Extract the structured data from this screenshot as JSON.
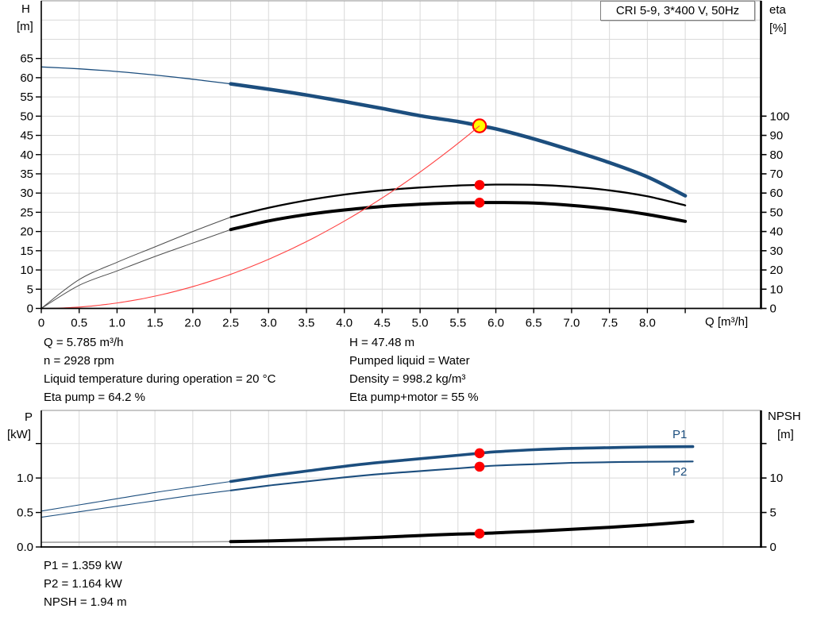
{
  "header": {
    "title": "CRI 5-9, 3*400 V, 50Hz"
  },
  "colors": {
    "curve_blue": "#1c4e7e",
    "curve_black": "#000000",
    "thin_gray": "#4d4d4d",
    "npsh_thin_gray": "#999999",
    "system_red": "#ff4040",
    "marker_red": "#ff0000",
    "marker_yellow": "#ffff00",
    "grid": "#d9d9d9",
    "frame": "#a6a6a6",
    "axis": "#000000"
  },
  "top_chart_labels": {
    "y_left_1": "H",
    "y_left_2": "[m]",
    "y_right_1": "eta",
    "y_right_2": "[%]",
    "x_label": "Q [m³/h]"
  },
  "bottom_chart_labels": {
    "y_left_1": "P",
    "y_left_2": "[kW]",
    "y_right_1": "NPSH",
    "y_right_2": "[m]",
    "p1": "P1",
    "p2": "P2"
  },
  "annotations": {
    "left": [
      "Q = 5.785 m³/h",
      "n = 2928 rpm",
      "Liquid temperature during operation = 20 °C",
      "Eta pump = 64.2 %"
    ],
    "right": [
      "H = 47.48 m",
      "Pumped liquid = Water",
      "Density = 998.2 kg/m³",
      "Eta pump+motor = 55 %"
    ],
    "bottom": [
      "P1 = 1.359 kW",
      "P2 = 1.164 kW",
      "NPSH = 1.94 m"
    ]
  },
  "chart_data": [
    {
      "type": "line",
      "title": "CRI 5-9, 3*400 V, 50Hz",
      "x_axis": {
        "label": "Q [m³/h]",
        "min": 0,
        "max": 9.5,
        "grid_step": 0.5,
        "tick_values": [
          0,
          0.5,
          1,
          1.5,
          2,
          2.5,
          3,
          3.5,
          4,
          4.5,
          5,
          5.5,
          6,
          6.5,
          7,
          7.5,
          8,
          8.5
        ],
        "tick_labels": [
          "0",
          "0.5",
          "1.0",
          "1.5",
          "2.0",
          "2.5",
          "3.0",
          "3.5",
          "4.0",
          "4.5",
          "5.0",
          "5.5",
          "6.0",
          "6.5",
          "7.0",
          "7.5",
          "8.0",
          ""
        ]
      },
      "y_left": {
        "label": "H [m]",
        "min": 0,
        "max": 80,
        "tick_values": [
          0,
          5,
          10,
          15,
          20,
          25,
          30,
          35,
          40,
          45,
          50,
          55,
          60,
          65
        ],
        "tick_labels": [
          "0",
          "5",
          "10",
          "15",
          "20",
          "25",
          "30",
          "35",
          "40",
          "45",
          "50",
          "55",
          "60",
          "65"
        ],
        "grid_values": [
          5,
          10,
          15,
          20,
          25,
          30,
          35,
          40,
          45,
          50,
          55,
          60,
          65,
          70,
          75
        ]
      },
      "y_right": {
        "label": "eta [%]",
        "min": 0,
        "max": 160,
        "tick_values": [
          0,
          10,
          20,
          30,
          40,
          50,
          60,
          70,
          80,
          90,
          100
        ],
        "tick_labels": [
          "0",
          "10",
          "20",
          "30",
          "40",
          "50",
          "60",
          "70",
          "80",
          "90",
          "100"
        ]
      },
      "series": [
        {
          "name": "pump-head-curve",
          "axis": "left",
          "color_key": "curve_blue",
          "thin_color_key": "curve_blue",
          "thin_until": 2.5,
          "thin_width": 1.3,
          "width": 4.5,
          "points": [
            [
              0,
              62.8
            ],
            [
              0.5,
              62.3
            ],
            [
              1,
              61.6
            ],
            [
              1.5,
              60.7
            ],
            [
              2,
              59.6
            ],
            [
              2.5,
              58.4
            ],
            [
              3,
              57.0
            ],
            [
              3.5,
              55.5
            ],
            [
              4,
              53.8
            ],
            [
              4.5,
              52.0
            ],
            [
              5,
              50.1
            ],
            [
              5.5,
              48.6
            ],
            [
              5.785,
              47.48
            ],
            [
              6,
              46.7
            ],
            [
              6.5,
              44.1
            ],
            [
              7,
              41.1
            ],
            [
              7.5,
              37.9
            ],
            [
              8,
              34.2
            ],
            [
              8.5,
              29.3
            ]
          ]
        },
        {
          "name": "eta-pump-curve",
          "axis": "right",
          "color_key": "curve_black",
          "thin_color_key": "thin_gray",
          "thin_until": 2.5,
          "thin_width": 1,
          "width": 2.3,
          "points": [
            [
              0,
              0
            ],
            [
              0.5,
              15
            ],
            [
              1,
              24
            ],
            [
              1.5,
              32
            ],
            [
              2,
              40
            ],
            [
              2.5,
              47.5
            ],
            [
              3,
              52.3
            ],
            [
              3.5,
              56.2
            ],
            [
              4,
              59.2
            ],
            [
              4.5,
              61.4
            ],
            [
              5,
              62.9
            ],
            [
              5.5,
              63.9
            ],
            [
              5.785,
              64.2
            ],
            [
              6,
              64.4
            ],
            [
              6.5,
              64.3
            ],
            [
              7,
              63.3
            ],
            [
              7.5,
              61.4
            ],
            [
              8,
              58.3
            ],
            [
              8.5,
              53.6
            ]
          ]
        },
        {
          "name": "eta-pump-motor-curve",
          "axis": "right",
          "color_key": "curve_black",
          "thin_color_key": "thin_gray",
          "thin_until": 2.5,
          "thin_width": 1,
          "width": 4,
          "points": [
            [
              0,
              0
            ],
            [
              0.5,
              12
            ],
            [
              1,
              19.5
            ],
            [
              1.5,
              27
            ],
            [
              2,
              34
            ],
            [
              2.5,
              41
            ],
            [
              3,
              45.5
            ],
            [
              3.5,
              48.8
            ],
            [
              4,
              51.2
            ],
            [
              4.5,
              53.0
            ],
            [
              5,
              54.2
            ],
            [
              5.5,
              54.9
            ],
            [
              5.785,
              55
            ],
            [
              6,
              55.1
            ],
            [
              6.5,
              54.8
            ],
            [
              7,
              53.6
            ],
            [
              7.5,
              51.7
            ],
            [
              8,
              48.9
            ],
            [
              8.5,
              45.3
            ]
          ]
        }
      ],
      "system_curve": {
        "q_duty": 5.785,
        "h_duty": 47.48,
        "exponent": 2,
        "color_key": "system_red",
        "width": 1.1
      },
      "duty_point": {
        "q": 5.785,
        "h": 47.48,
        "eta_pump": 64.2,
        "eta_pump_motor": 55
      },
      "markers": [
        {
          "q": 5.785,
          "value": 47.48,
          "axis": "left",
          "style": "duty",
          "name": "duty-point-marker"
        },
        {
          "q": 5.785,
          "value": 64.2,
          "axis": "right",
          "style": "dot",
          "name": "eta-pump-duty-dot"
        },
        {
          "q": 5.785,
          "value": 55,
          "axis": "right",
          "style": "dot",
          "name": "eta-pump-motor-duty-dot"
        }
      ]
    },
    {
      "type": "line",
      "x_axis": {
        "min": 0,
        "max": 9.5,
        "grid_step": 0.5,
        "tick_values": [],
        "tick_labels": []
      },
      "y_left": {
        "label": "P [kW]",
        "min": 0,
        "max": 1.98,
        "tick_values": [
          0,
          0.5,
          1,
          1.5
        ],
        "tick_labels": [
          "0.0",
          "0.5",
          "1.0",
          ""
        ],
        "grid_values": [
          0.5,
          1.0,
          1.5
        ]
      },
      "y_right": {
        "label": "NPSH [m]",
        "min": 0,
        "max": 19.8,
        "tick_values": [
          0,
          5,
          10,
          15
        ],
        "tick_labels": [
          "0",
          "5",
          "10",
          ""
        ]
      },
      "series": [
        {
          "name": "p1-curve",
          "axis": "left",
          "color_key": "curve_blue",
          "thin_color_key": "curve_blue",
          "thin_until": 2.5,
          "thin_width": 1.1,
          "width": 3.6,
          "points": [
            [
              0,
              0.52
            ],
            [
              0.5,
              0.61
            ],
            [
              1,
              0.7
            ],
            [
              1.5,
              0.79
            ],
            [
              2,
              0.87
            ],
            [
              2.5,
              0.95
            ],
            [
              3,
              1.03
            ],
            [
              3.5,
              1.1
            ],
            [
              4,
              1.17
            ],
            [
              4.5,
              1.23
            ],
            [
              5,
              1.28
            ],
            [
              5.5,
              1.33
            ],
            [
              5.785,
              1.359
            ],
            [
              6,
              1.38
            ],
            [
              6.5,
              1.41
            ],
            [
              7,
              1.43
            ],
            [
              7.5,
              1.44
            ],
            [
              8,
              1.45
            ],
            [
              8.6,
              1.455
            ]
          ]
        },
        {
          "name": "p2-curve",
          "axis": "left",
          "color_key": "curve_blue",
          "thin_color_key": "curve_blue",
          "thin_until": 2.5,
          "thin_width": 1.1,
          "width": 2.1,
          "points": [
            [
              0,
              0.43
            ],
            [
              0.5,
              0.51
            ],
            [
              1,
              0.59
            ],
            [
              1.5,
              0.67
            ],
            [
              2,
              0.75
            ],
            [
              2.5,
              0.82
            ],
            [
              3,
              0.89
            ],
            [
              3.5,
              0.95
            ],
            [
              4,
              1.01
            ],
            [
              4.5,
              1.06
            ],
            [
              5,
              1.1
            ],
            [
              5.5,
              1.14
            ],
            [
              5.785,
              1.164
            ],
            [
              6,
              1.18
            ],
            [
              6.5,
              1.2
            ],
            [
              7,
              1.22
            ],
            [
              7.5,
              1.23
            ],
            [
              8,
              1.235
            ],
            [
              8.6,
              1.24
            ]
          ]
        },
        {
          "name": "npsh-curve",
          "axis": "right",
          "color_key": "curve_black",
          "thin_color_key": "npsh_thin_gray",
          "thin_until": 2.5,
          "thin_width": 1.5,
          "width": 4,
          "points": [
            [
              0,
              0.68
            ],
            [
              0.5,
              0.69
            ],
            [
              1,
              0.71
            ],
            [
              1.5,
              0.72
            ],
            [
              2,
              0.74
            ],
            [
              2.5,
              0.78
            ],
            [
              3,
              0.88
            ],
            [
              3.5,
              1.02
            ],
            [
              4,
              1.2
            ],
            [
              4.5,
              1.42
            ],
            [
              5,
              1.66
            ],
            [
              5.5,
              1.86
            ],
            [
              5.785,
              1.94
            ],
            [
              6,
              2.05
            ],
            [
              6.5,
              2.28
            ],
            [
              7,
              2.55
            ],
            [
              7.5,
              2.85
            ],
            [
              8,
              3.2
            ],
            [
              8.6,
              3.7
            ]
          ]
        }
      ],
      "duty_values": {
        "p1_kw": 1.359,
        "p2_kw": 1.164,
        "npsh_m": 1.94
      },
      "markers": [
        {
          "q": 5.785,
          "value": 1.359,
          "axis": "left",
          "style": "dot",
          "name": "p1-duty-dot"
        },
        {
          "q": 5.785,
          "value": 1.164,
          "axis": "left",
          "style": "dot",
          "name": "p2-duty-dot"
        },
        {
          "q": 5.785,
          "value": 1.94,
          "axis": "right",
          "style": "dot",
          "name": "npsh-duty-dot"
        }
      ]
    }
  ]
}
